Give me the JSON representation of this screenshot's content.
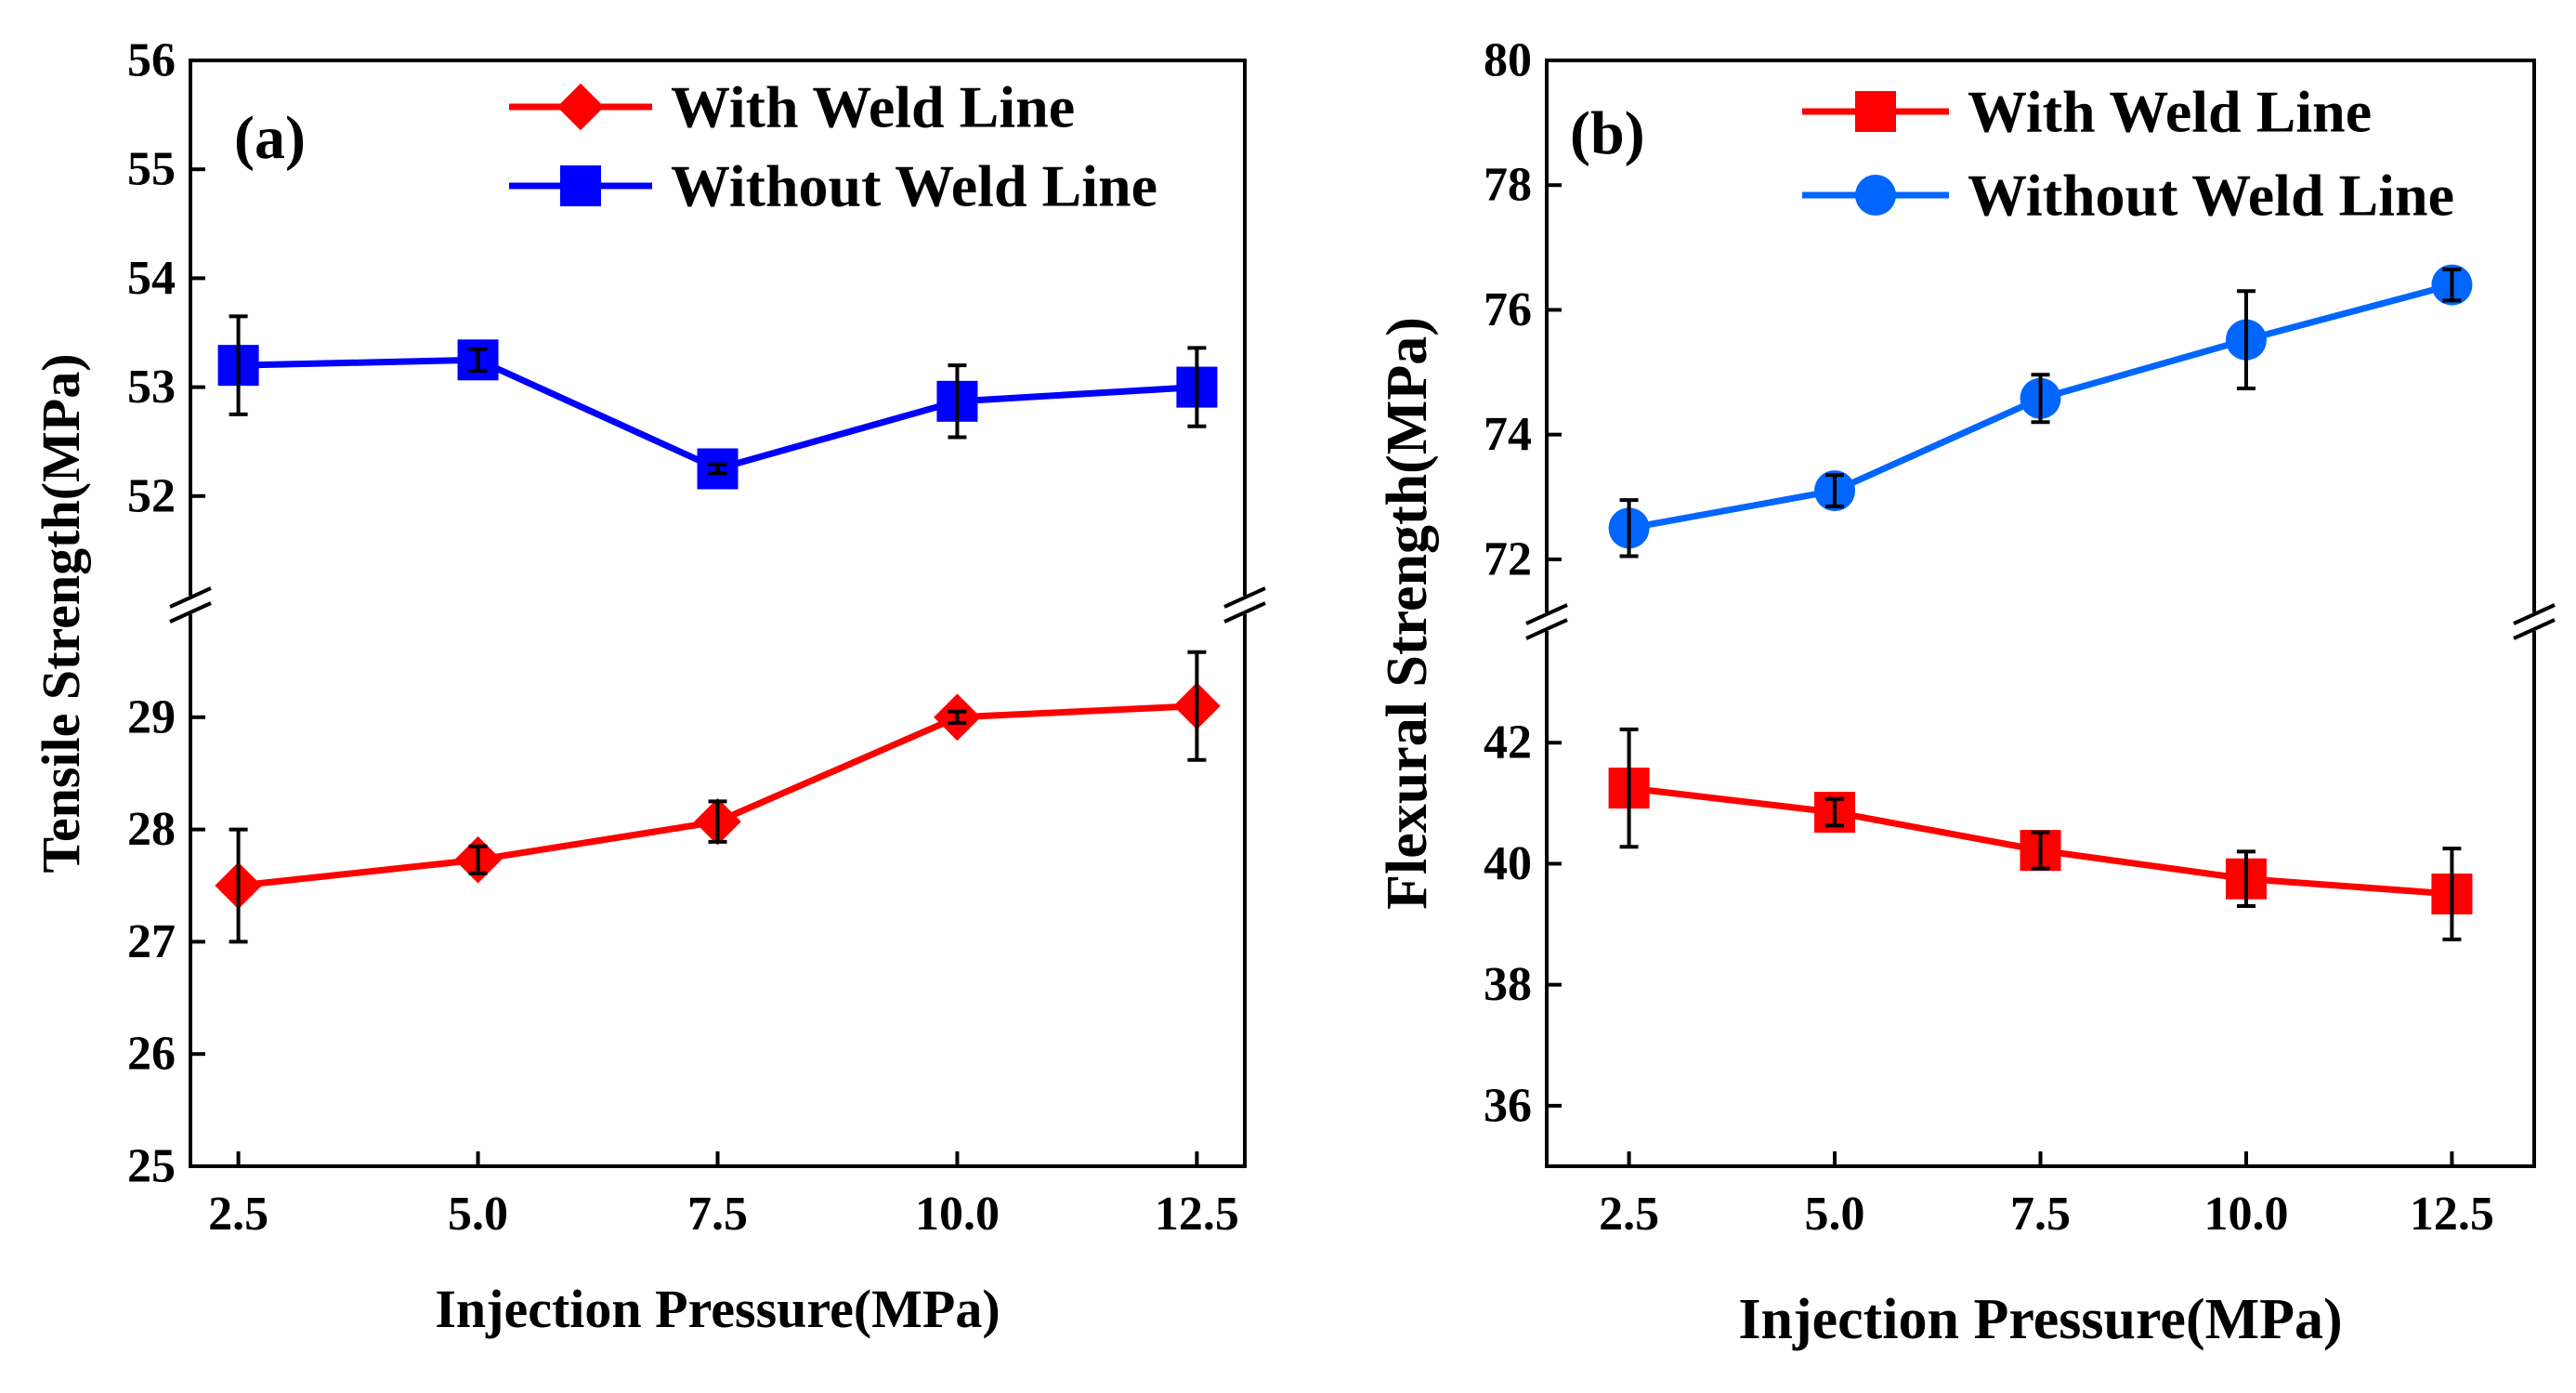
{
  "chart_data": [
    {
      "type": "line",
      "panel_label": "(a)",
      "xlabel": "Injection Pressure(MPa)",
      "ylabel": "Tensile Strength(MPa)",
      "x": [
        2.5,
        5.0,
        7.5,
        10.0,
        12.5
      ],
      "x_tick_labels": [
        "2.5",
        "5.0",
        "7.5",
        "10.0",
        "12.5"
      ],
      "xlim": [
        2.0,
        13.0
      ],
      "y_break": true,
      "y_upper_range": [
        51.0,
        56.0
      ],
      "y_upper_ticks": [
        "52",
        "53",
        "54",
        "55",
        "56"
      ],
      "y_lower_range": [
        25.0,
        30.0
      ],
      "y_lower_ticks": [
        "25",
        "26",
        "27",
        "28",
        "29"
      ],
      "legend_position": "top-right",
      "series": [
        {
          "name": "With Weld Line",
          "color": "#ff0000",
          "marker": "diamond",
          "segment": "lower",
          "values": [
            27.5,
            27.73,
            28.07,
            29.0,
            29.1
          ],
          "errors": [
            0.5,
            0.12,
            0.18,
            0.05,
            0.48
          ]
        },
        {
          "name": "Without Weld Line",
          "color": "#0000ff",
          "marker": "square",
          "segment": "upper",
          "values": [
            53.2,
            53.25,
            52.25,
            52.87,
            53.0
          ],
          "errors": [
            0.45,
            0.1,
            0.04,
            0.33,
            0.36
          ]
        }
      ]
    },
    {
      "type": "line",
      "panel_label": "(b)",
      "xlabel": "Injection Pressure(MPa)",
      "ylabel": "Flexural Strength(MPa)",
      "x": [
        2.5,
        5.0,
        7.5,
        10.0,
        12.5
      ],
      "x_tick_labels": [
        "2.5",
        "5.0",
        "7.5",
        "10.0",
        "12.5"
      ],
      "xlim": [
        1.5,
        13.5
      ],
      "y_break": true,
      "y_upper_range": [
        71.0,
        80.0
      ],
      "y_upper_ticks": [
        "72",
        "74",
        "76",
        "78",
        "80"
      ],
      "y_lower_range": [
        35.0,
        44.0
      ],
      "y_lower_ticks": [
        "36",
        "38",
        "40",
        "42"
      ],
      "legend_position": "top-right",
      "series": [
        {
          "name": "With Weld Line",
          "color": "#ff0000",
          "marker": "square",
          "segment": "lower",
          "values": [
            41.25,
            40.85,
            40.22,
            39.75,
            39.5
          ],
          "errors": [
            0.97,
            0.22,
            0.3,
            0.45,
            0.75
          ]
        },
        {
          "name": "Without Weld Line",
          "color": "#0066ff",
          "marker": "circle",
          "segment": "upper",
          "values": [
            72.5,
            73.1,
            74.58,
            75.52,
            76.4
          ],
          "errors": [
            0.45,
            0.25,
            0.38,
            0.78,
            0.25
          ]
        }
      ]
    }
  ]
}
